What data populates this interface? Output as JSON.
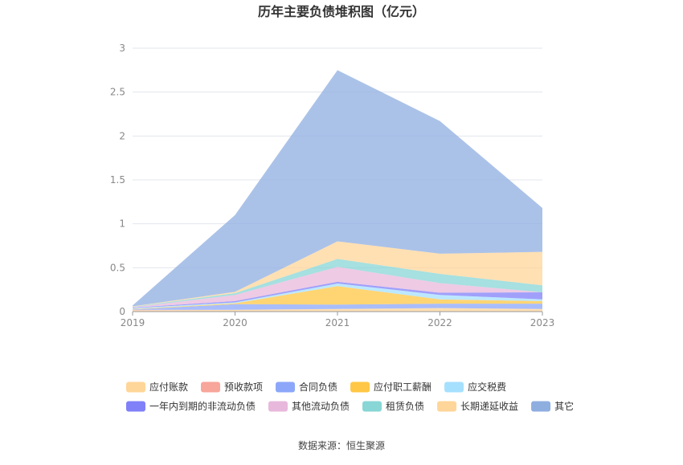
{
  "chart_data": {
    "type": "area",
    "stacked": true,
    "title": "历年主要负债堆积图（亿元）",
    "x": [
      "2019",
      "2020",
      "2021",
      "2022",
      "2023"
    ],
    "ylim": [
      0,
      3
    ],
    "yticks": [
      "0",
      "0.5",
      "1",
      "1.5",
      "2",
      "2.5",
      "3"
    ],
    "grid": true,
    "legend_position": "bottom",
    "series": [
      {
        "name": "应付账款",
        "color": "#FFD699",
        "values": [
          0.015,
          0.02,
          0.03,
          0.04,
          0.03
        ]
      },
      {
        "name": "预收款项",
        "color": "#F8A59B",
        "values": [
          0.005,
          0.0,
          0.0,
          0.0,
          0.0
        ]
      },
      {
        "name": "合同负债",
        "color": "#8CA7FA",
        "values": [
          0.005,
          0.065,
          0.05,
          0.05,
          0.06
        ]
      },
      {
        "name": "应付职工薪酬",
        "color": "#FFC745",
        "values": [
          0.005,
          0.01,
          0.21,
          0.05,
          0.03
        ]
      },
      {
        "name": "应交税费",
        "color": "#A6E0FF",
        "values": [
          0.01,
          0.01,
          0.03,
          0.05,
          0.02
        ]
      },
      {
        "name": "一年内到期的非流动负债",
        "color": "#8080F8",
        "values": [
          0.005,
          0.015,
          0.02,
          0.025,
          0.08
        ]
      },
      {
        "name": "其他流动负债",
        "color": "#E8B8DC",
        "values": [
          0.005,
          0.07,
          0.17,
          0.11,
          0.0
        ]
      },
      {
        "name": "租赁负债",
        "color": "#88D6D6",
        "values": [
          0.005,
          0.02,
          0.09,
          0.105,
          0.08
        ]
      },
      {
        "name": "长期递延收益",
        "color": "#FFD699",
        "values": [
          0.005,
          0.015,
          0.2,
          0.23,
          0.38
        ]
      },
      {
        "name": "其它",
        "color": "#8FAEE0",
        "values": [
          0.01,
          0.875,
          1.95,
          1.51,
          0.5
        ]
      }
    ]
  },
  "source": "数据来源：恒生聚源"
}
